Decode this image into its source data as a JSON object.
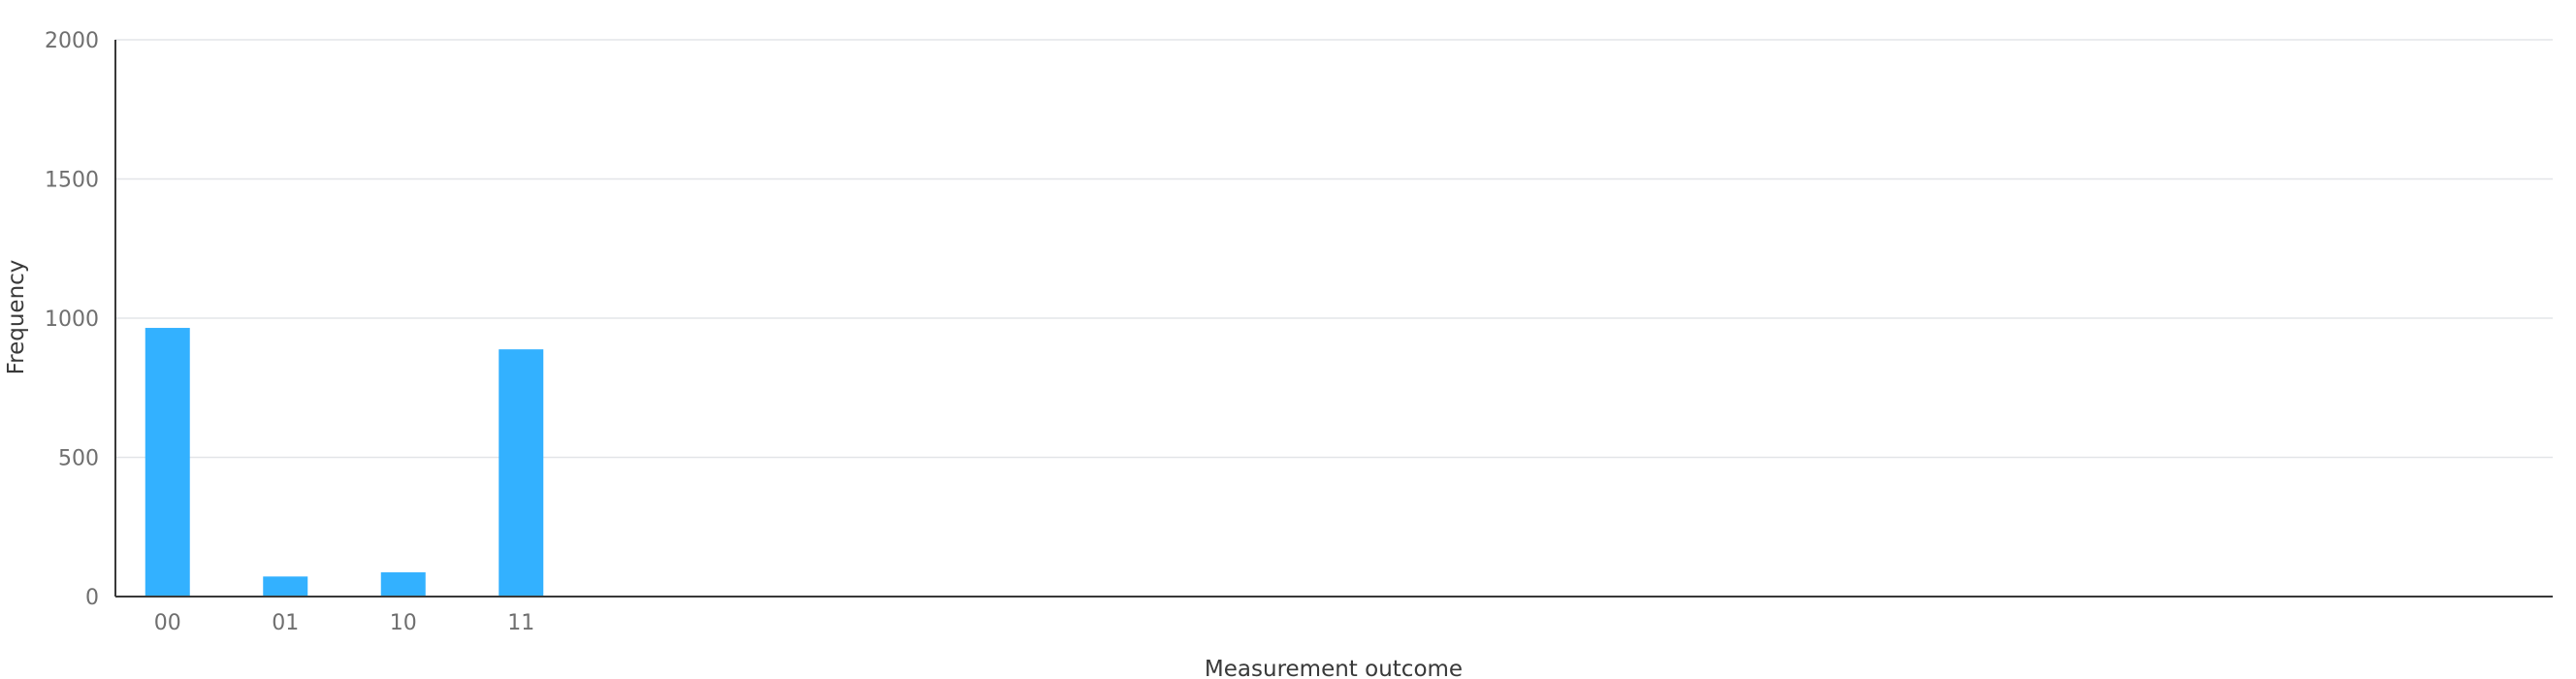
{
  "chart_data": {
    "type": "bar",
    "xlabel": "Measurement outcome",
    "ylabel": "Frequency",
    "categories": [
      "00",
      "01",
      "10",
      "11"
    ],
    "values": [
      965,
      72,
      87,
      888
    ],
    "ylim": [
      0,
      2000
    ],
    "yticks": [
      0,
      500,
      1000,
      1500,
      2000
    ],
    "grid": "horizontal",
    "bar_color": "#33b1ff"
  }
}
